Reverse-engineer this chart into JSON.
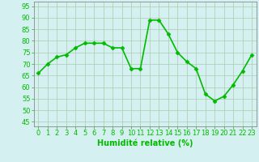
{
  "x": [
    0,
    1,
    2,
    3,
    4,
    5,
    6,
    7,
    8,
    9,
    10,
    11,
    12,
    13,
    14,
    15,
    16,
    17,
    18,
    19,
    20,
    21,
    22,
    23
  ],
  "y": [
    66,
    70,
    73,
    74,
    77,
    79,
    79,
    79,
    77,
    77,
    68,
    68,
    89,
    89,
    83,
    75,
    71,
    68,
    57,
    54,
    56,
    61,
    67,
    74
  ],
  "line_color": "#00bb00",
  "marker": "D",
  "marker_size": 2.5,
  "linewidth": 1.2,
  "background_color": "#d4f0f0",
  "grid_color": "#aaccaa",
  "spine_color": "#888888",
  "xlabel": "Humidité relative (%)",
  "xlabel_color": "#00bb00",
  "xlabel_fontsize": 7,
  "ylabel_ticks": [
    45,
    50,
    55,
    60,
    65,
    70,
    75,
    80,
    85,
    90,
    95
  ],
  "ylim": [
    43,
    97
  ],
  "xlim": [
    -0.5,
    23.5
  ],
  "tick_color": "#00bb00",
  "tick_fontsize": 6,
  "figsize": [
    3.2,
    2.0
  ],
  "dpi": 100
}
